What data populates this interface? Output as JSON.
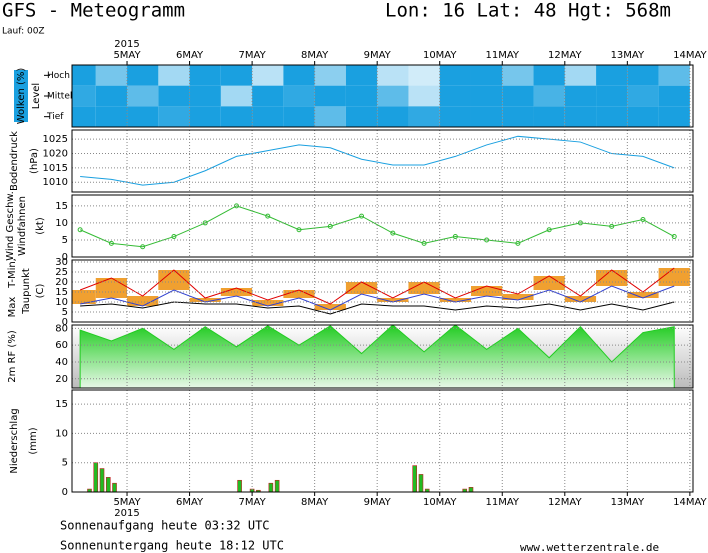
{
  "header": {
    "title": "GFS - Meteogramm",
    "location": "Lon: 16  Lat: 48  Hgt: 568m",
    "run": "Lauf: 00Z"
  },
  "footer": {
    "sunrise": "Sonnenaufgang heute 03:32 UTC",
    "sunset": "Sonnenuntergang heute 18:12 UTC",
    "source": "www.wetterzentrale.de"
  },
  "chart_data": [
    {
      "type": "heatmap",
      "ylabel": "Wolken (%)",
      "level_label": "Level",
      "year_label": "2015",
      "xlim": [
        4.12,
        14.05
      ],
      "xticks": [
        {
          "value": 5,
          "label": "5MAY"
        },
        {
          "value": 6,
          "label": "6MAY"
        },
        {
          "value": 7,
          "label": "7MAY"
        },
        {
          "value": 8,
          "label": "8MAY"
        },
        {
          "value": 9,
          "label": "9MAY"
        },
        {
          "value": 10,
          "label": "10MAY"
        },
        {
          "value": 11,
          "label": "11MAY"
        },
        {
          "value": 12,
          "label": "12MAY"
        },
        {
          "value": 13,
          "label": "13MAY"
        },
        {
          "value": 14,
          "label": "14MAY"
        }
      ],
      "x": [
        4.25,
        4.75,
        5.25,
        5.75,
        6.25,
        6.75,
        7.25,
        7.75,
        8.25,
        8.75,
        9.25,
        9.75,
        10.25,
        10.75,
        11.25,
        11.75,
        12.25,
        12.75,
        13.25,
        13.75
      ],
      "color": "#1aa0e0",
      "series": [
        {
          "name": "Hoch",
          "values": [
            100,
            60,
            100,
            40,
            100,
            100,
            30,
            100,
            50,
            100,
            30,
            20,
            100,
            100,
            60,
            100,
            40,
            100,
            100,
            70
          ]
        },
        {
          "name": "Mittel",
          "values": [
            90,
            100,
            70,
            100,
            100,
            40,
            100,
            90,
            100,
            100,
            70,
            30,
            100,
            100,
            100,
            80,
            100,
            100,
            90,
            100
          ]
        },
        {
          "name": "Tief",
          "values": [
            100,
            100,
            100,
            90,
            100,
            100,
            100,
            100,
            70,
            100,
            100,
            90,
            100,
            100,
            100,
            100,
            100,
            100,
            100,
            100
          ]
        }
      ]
    },
    {
      "type": "line",
      "ylabel": "Bodendruck",
      "yunit": "(hPa)",
      "xlim": [
        4.12,
        14.05
      ],
      "ylim": [
        1006.6,
        1028.2
      ],
      "yticks": [
        1010,
        1015,
        1020,
        1025
      ],
      "color": "#1aa0e0",
      "x": [
        4.25,
        4.75,
        5.25,
        5.75,
        6.25,
        6.75,
        7.25,
        7.75,
        8.25,
        8.75,
        9.25,
        9.75,
        10.25,
        10.75,
        11.25,
        11.75,
        12.25,
        12.75,
        13.25,
        13.75
      ],
      "values": [
        1012,
        1011,
        1009,
        1010,
        1014,
        1019,
        1021,
        1023,
        1022,
        1018,
        1016,
        1016,
        1019,
        1023,
        1026,
        1025,
        1024,
        1020,
        1019,
        1015
      ]
    },
    {
      "type": "line",
      "markers": true,
      "ylabel": "Windfahnen",
      "yunit": "(kt)",
      "xlim": [
        4.12,
        14.05
      ],
      "ylim": [
        0,
        18.2
      ],
      "yticks": [
        0,
        5,
        10,
        15
      ],
      "x": [
        4.25,
        4.75,
        5.25,
        5.75,
        6.25,
        6.75,
        7.25,
        7.75,
        8.25,
        8.75,
        9.25,
        9.75,
        10.25,
        10.75,
        11.25,
        11.75,
        12.25,
        12.75,
        13.25,
        13.75
      ],
      "series": [
        {
          "name": "Wind Geschw.",
          "color": "#33bb33",
          "values": [
            8,
            4,
            3,
            6,
            10,
            15,
            12,
            8,
            9,
            12,
            7,
            4,
            6,
            5,
            4,
            8,
            10,
            9,
            11,
            6
          ]
        }
      ]
    },
    {
      "type": "band",
      "yunit": "(C)",
      "xlim": [
        4.12,
        14.05
      ],
      "ylim": [
        0,
        31
      ],
      "yticks": [
        0,
        5,
        10,
        15,
        20,
        25,
        30
      ],
      "band_color": "#f0a030",
      "x": [
        4.25,
        4.75,
        5.25,
        5.75,
        6.25,
        6.75,
        7.25,
        7.75,
        8.25,
        8.75,
        9.25,
        9.75,
        10.25,
        10.75,
        11.25,
        11.75,
        12.25,
        12.75,
        13.25,
        13.75
      ],
      "series": [
        {
          "name": "T-Min,",
          "color": "#3040d0",
          "values": [
            9,
            12,
            8,
            16,
            10,
            13,
            8,
            12,
            6,
            14,
            10,
            14,
            10,
            13,
            11,
            16,
            10,
            18,
            12,
            18
          ]
        },
        {
          "name": "Max",
          "color": "#e00000",
          "values": [
            16,
            22,
            13,
            26,
            12,
            17,
            11,
            16,
            9,
            20,
            12,
            20,
            12,
            18,
            14,
            23,
            13,
            26,
            15,
            27
          ]
        },
        {
          "name": "Taupunkt",
          "color": "#000000",
          "values": [
            8,
            9,
            7,
            10,
            9,
            9,
            7,
            8,
            4,
            9,
            8,
            8,
            6,
            8,
            7,
            9,
            6,
            9,
            6,
            10
          ]
        }
      ]
    },
    {
      "type": "area",
      "ylabel": "2m RF (%)",
      "xlim": [
        4.12,
        14.05
      ],
      "ylim": [
        9,
        84
      ],
      "yticks": [
        20,
        40,
        60,
        80
      ],
      "color": "#22cc22",
      "x": [
        4.25,
        4.75,
        5.25,
        5.75,
        6.25,
        6.75,
        7.25,
        7.75,
        8.25,
        8.75,
        9.25,
        9.75,
        10.25,
        10.75,
        11.25,
        11.75,
        12.25,
        12.75,
        13.25,
        13.75
      ],
      "values": [
        78,
        65,
        80,
        55,
        82,
        58,
        83,
        60,
        83,
        50,
        84,
        52,
        84,
        55,
        80,
        45,
        82,
        40,
        75,
        82
      ]
    },
    {
      "type": "bar",
      "ylabel": "Niederschlag",
      "yunit": "(mm)",
      "year_label": "2015",
      "xlim": [
        4.12,
        14.05
      ],
      "ylim": [
        0,
        17.4
      ],
      "yticks": [
        0,
        5,
        10,
        15
      ],
      "color": "#22bb22",
      "xticks": [
        {
          "value": 5,
          "label": "5MAY"
        },
        {
          "value": 6,
          "label": "6MAY"
        },
        {
          "value": 7,
          "label": "7MAY"
        },
        {
          "value": 8,
          "label": "8MAY"
        },
        {
          "value": 9,
          "label": "9MAY"
        },
        {
          "value": 10,
          "label": "10MAY"
        },
        {
          "value": 11,
          "label": "11MAY"
        },
        {
          "value": 12,
          "label": "12MAY"
        },
        {
          "value": 13,
          "label": "13MAY"
        },
        {
          "value": 14,
          "label": "14MAY"
        }
      ],
      "x": [
        4.4,
        4.5,
        4.6,
        4.7,
        4.8,
        6.8,
        7.0,
        7.1,
        7.3,
        7.4,
        9.6,
        9.7,
        9.8,
        10.4,
        10.5
      ],
      "values": [
        0.5,
        5,
        4,
        2.5,
        1.5,
        2,
        0.5,
        0.3,
        1.5,
        2,
        4.5,
        3,
        0.5,
        0.5,
        0.8
      ]
    }
  ]
}
